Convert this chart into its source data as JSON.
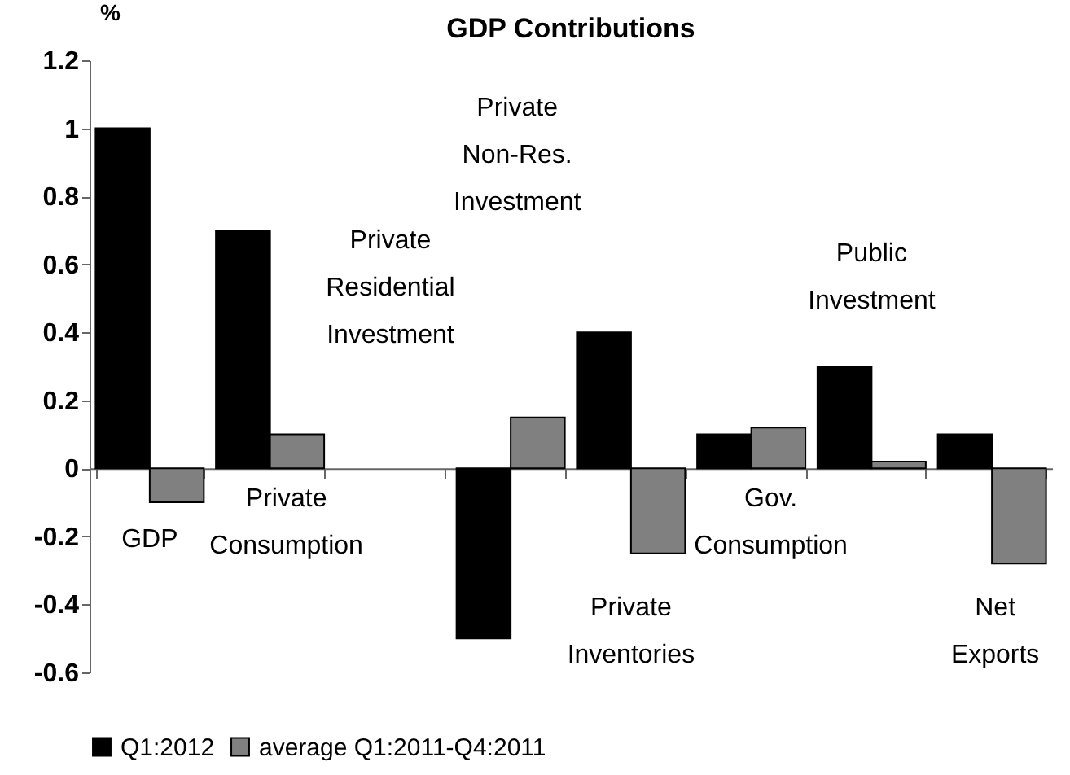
{
  "chart_data": {
    "type": "bar",
    "title": "GDP Contributions",
    "ylabel": "%",
    "categories": [
      "GDP",
      "Private Consumption",
      "Private Residential Investment",
      "Private Non-Res. Investment",
      "Private Inventories",
      "Gov. Consumption",
      "Public Investment",
      "Net Exports"
    ],
    "series": [
      {
        "name": "Q1:2012",
        "color": "#000000",
        "values": [
          1,
          0.7,
          null,
          -0.5,
          0.4,
          0.1,
          0.3,
          0.1
        ]
      },
      {
        "name": "average Q1:2011-Q4:2011",
        "color": "#808080",
        "values": [
          -0.1,
          0.1,
          null,
          0.15,
          -0.25,
          0.12,
          0.02,
          -0.28
        ]
      }
    ],
    "ylim": [
      -0.6,
      1.2
    ],
    "yticks": [
      -0.6,
      -0.4,
      -0.2,
      0,
      0.2,
      0.4,
      0.6,
      0.8,
      1,
      1.2
    ],
    "grid": false,
    "legend": "bottom"
  }
}
